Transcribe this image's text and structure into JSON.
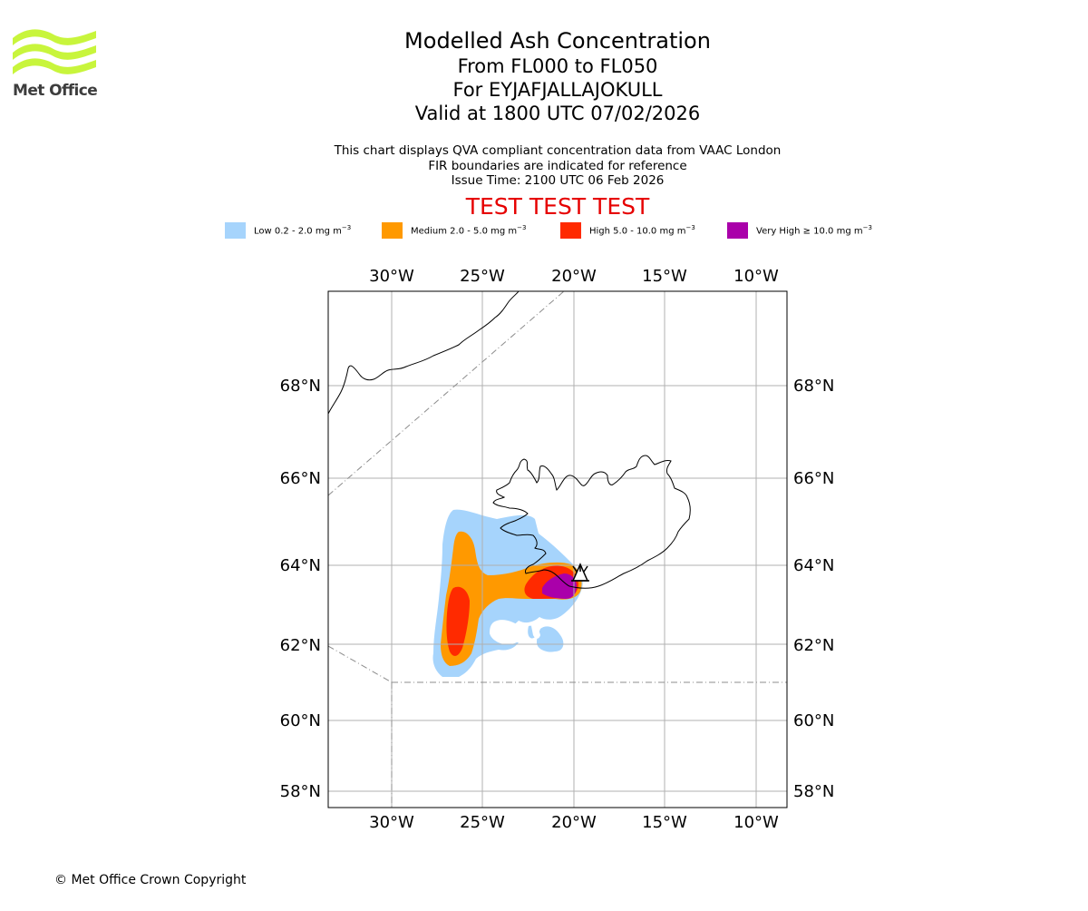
{
  "logo": {
    "text": "Met Office",
    "color": "#c8f53c"
  },
  "titles": {
    "line1": "Modelled Ash Concentration",
    "line2": "From FL000 to FL050",
    "line3": "For EYJAFJALLAJOKULL",
    "line4": "Valid at 1800 UTC 07/02/2026"
  },
  "subtitles": {
    "line1": "This chart displays QVA compliant concentration data from VAAC London",
    "line2": "FIR boundaries are indicated for reference",
    "line3": "Issue Time: 2100 UTC 06 Feb 2026"
  },
  "test_banner": "TEST TEST TEST",
  "legend": [
    {
      "label": "Low 0.2 - 2.0 mg m",
      "sup": "−3",
      "color": "#a6d4fc"
    },
    {
      "label": "Medium 2.0 - 5.0 mg m",
      "sup": "−3",
      "color": "#ff9900"
    },
    {
      "label": "High 5.0 - 10.0 mg m",
      "sup": "−3",
      "color": "#ff2a00"
    },
    {
      "label": "Very High  ≥  10.0 mg m",
      "sup": "−3",
      "color": "#aa00aa"
    }
  ],
  "map": {
    "lon_labels": [
      "30°W",
      "25°W",
      "20°W",
      "15°W",
      "10°W"
    ],
    "lat_labels": [
      "68°N",
      "66°N",
      "64°N",
      "62°N",
      "60°N",
      "58°N"
    ],
    "volcano": "EYJAFJALLAJOKULL"
  },
  "copyright": "© Met Office Crown Copyright"
}
